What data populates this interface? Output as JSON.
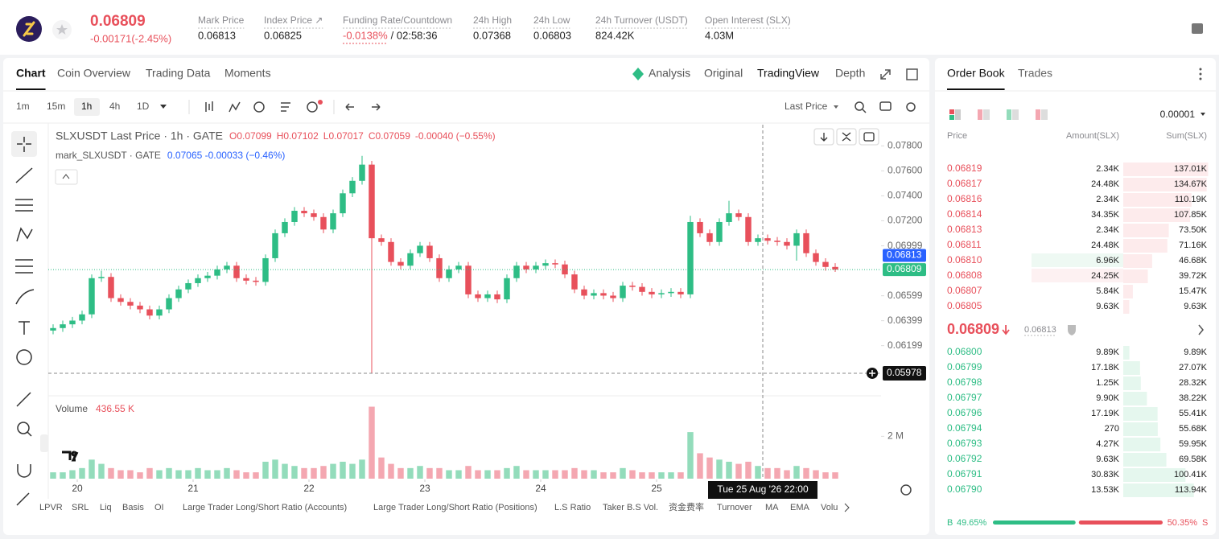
{
  "header": {
    "symbol_price": "0.06809",
    "change": "-0.00171(-2.45%)",
    "stats": [
      {
        "label": "Mark Price",
        "value": "0.06813"
      },
      {
        "label": "Index Price ↗",
        "value": "0.06825"
      },
      {
        "label": "Funding Rate/Countdown",
        "value": "-0.0138%",
        "extra": "/ 02:58:36"
      },
      {
        "label": "24h High",
        "value": "0.07368"
      },
      {
        "label": "24h Low",
        "value": "0.06803"
      },
      {
        "label": "24h Turnover (USDT)",
        "value": "824.42K"
      },
      {
        "label": "Open Interest (SLX)",
        "value": "4.03M"
      }
    ]
  },
  "chart_panel": {
    "tabs": [
      "Chart",
      "Coin Overview",
      "Trading Data",
      "Moments"
    ],
    "views": [
      "Analysis",
      "Original",
      "TradingView",
      "Depth"
    ],
    "intervals": [
      "1m",
      "15m",
      "1h",
      "4h",
      "1D"
    ],
    "price_source": "Last Price",
    "indicators": [
      "LPVR",
      "SRL",
      "Liq",
      "Basis",
      "OI",
      "Large Trader Long/Short Ratio (Accounts)",
      "Large Trader Long/Short Ratio (Positions)",
      "L.S Ratio",
      "Taker B.S Vol.",
      "资金费率",
      "Turnover",
      "MA",
      "EMA",
      "Volu"
    ]
  },
  "chart_data": {
    "type": "candlestick",
    "title": "SLXUSDT Last Price · 1h · GATE",
    "ohlc_legend": [
      "O0.07099",
      "H0.07102",
      "L0.07017",
      "C0.07059",
      "-0.00040 (−0.55%)"
    ],
    "mark_legend": {
      "name": "mark_SLXUSDT · GATE",
      "values": "0.07065 -0.00033 (−0.46%)"
    },
    "up_color": "#2ebd85",
    "down_color": "#e8505b",
    "open": [
      0.0632,
      0.0634,
      0.0637,
      0.064,
      0.0645,
      0.0674,
      0.0675,
      0.0658,
      0.0655,
      0.0652,
      0.0649,
      0.0644,
      0.0649,
      0.0658,
      0.0665,
      0.067,
      0.0674,
      0.0676,
      0.0681,
      0.0684,
      0.0674,
      0.0672,
      0.0671,
      0.069,
      0.071,
      0.0719,
      0.0728,
      0.0726,
      0.0723,
      0.0713,
      0.0726,
      0.0742,
      0.0752,
      0.0765,
      0.0706,
      0.0703,
      0.0687,
      0.0684,
      0.0694,
      0.07,
      0.069,
      0.0674,
      0.0681,
      0.0684,
      0.0661,
      0.0658,
      0.0661,
      0.0657,
      0.0674,
      0.0684,
      0.0681,
      0.0684,
      0.0686,
      0.0685,
      0.0677,
      0.0665,
      0.066,
      0.0662,
      0.066,
      0.0658,
      0.0668,
      0.0667,
      0.0663,
      0.0661,
      0.0662,
      0.0663,
      0.0661,
      0.0719,
      0.071,
      0.0703,
      0.0719,
      0.0726,
      0.0723,
      0.0703,
      0.0706,
      0.0704,
      0.0703,
      0.07,
      0.071,
      0.0694,
      0.0687,
      0.0683
    ],
    "high": [
      0.0637,
      0.064,
      0.0643,
      0.0648,
      0.0677,
      0.068,
      0.0678,
      0.0661,
      0.0658,
      0.0655,
      0.0652,
      0.0652,
      0.0661,
      0.0668,
      0.0673,
      0.0677,
      0.0679,
      0.0684,
      0.0687,
      0.0687,
      0.0677,
      0.0675,
      0.0693,
      0.0713,
      0.0722,
      0.0731,
      0.0731,
      0.0729,
      0.0726,
      0.0729,
      0.0745,
      0.0755,
      0.0772,
      0.0768,
      0.0709,
      0.0706,
      0.069,
      0.0697,
      0.0703,
      0.0703,
      0.0693,
      0.0684,
      0.0687,
      0.0687,
      0.0664,
      0.0664,
      0.0664,
      0.0677,
      0.0687,
      0.0687,
      0.0687,
      0.0689,
      0.0689,
      0.0688,
      0.068,
      0.0668,
      0.0665,
      0.0665,
      0.0663,
      0.0671,
      0.0671,
      0.067,
      0.0666,
      0.0665,
      0.0666,
      0.0666,
      0.0724,
      0.0722,
      0.0713,
      0.0722,
      0.0736,
      0.0729,
      0.0726,
      0.0709,
      0.0709,
      0.0707,
      0.0706,
      0.0713,
      0.0713,
      0.0697,
      0.069,
      0.0686
    ],
    "low": [
      0.0629,
      0.0631,
      0.0634,
      0.0637,
      0.0642,
      0.0671,
      0.0655,
      0.0652,
      0.0649,
      0.0646,
      0.0641,
      0.0641,
      0.0646,
      0.0655,
      0.0662,
      0.0667,
      0.0671,
      0.0673,
      0.0678,
      0.0671,
      0.0669,
      0.0668,
      0.0668,
      0.0687,
      0.0707,
      0.0716,
      0.0723,
      0.072,
      0.071,
      0.071,
      0.0723,
      0.0739,
      0.0749,
      0.05978,
      0.07,
      0.0684,
      0.0681,
      0.0681,
      0.0691,
      0.0687,
      0.0671,
      0.0671,
      0.0678,
      0.0658,
      0.0655,
      0.0655,
      0.0654,
      0.0654,
      0.0671,
      0.0678,
      0.0678,
      0.0681,
      0.0682,
      0.0674,
      0.0662,
      0.0657,
      0.0657,
      0.0657,
      0.0655,
      0.0655,
      0.0664,
      0.066,
      0.0658,
      0.0658,
      0.0659,
      0.0658,
      0.0658,
      0.0707,
      0.07,
      0.07,
      0.0716,
      0.072,
      0.07,
      0.07,
      0.0701,
      0.07,
      0.0697,
      0.0688,
      0.0691,
      0.0684,
      0.068,
      0.0679
    ],
    "close": [
      0.0634,
      0.0637,
      0.064,
      0.0645,
      0.0674,
      0.0675,
      0.0658,
      0.0655,
      0.0652,
      0.0649,
      0.0644,
      0.0649,
      0.0658,
      0.0665,
      0.067,
      0.0674,
      0.0676,
      0.0681,
      0.0684,
      0.0674,
      0.0672,
      0.0671,
      0.069,
      0.071,
      0.0719,
      0.0728,
      0.0726,
      0.0723,
      0.0713,
      0.0726,
      0.0742,
      0.0752,
      0.0765,
      0.0706,
      0.0703,
      0.0687,
      0.0684,
      0.0694,
      0.07,
      0.069,
      0.0674,
      0.0681,
      0.0684,
      0.0661,
      0.0658,
      0.0661,
      0.0657,
      0.0674,
      0.0684,
      0.0681,
      0.0684,
      0.0686,
      0.0685,
      0.0677,
      0.0665,
      0.066,
      0.0662,
      0.066,
      0.0658,
      0.0668,
      0.0667,
      0.0663,
      0.0661,
      0.0662,
      0.0663,
      0.0661,
      0.0719,
      0.071,
      0.0703,
      0.0719,
      0.0726,
      0.0723,
      0.0703,
      0.0706,
      0.0704,
      0.0703,
      0.07,
      0.071,
      0.0694,
      0.0687,
      0.0683,
      0.06809
    ],
    "xlim": [
      0,
      82
    ],
    "xticks": [
      {
        "value": 3,
        "label": "20"
      },
      {
        "value": 15,
        "label": "21"
      },
      {
        "value": 27,
        "label": "22"
      },
      {
        "value": 39,
        "label": "23"
      },
      {
        "value": 51,
        "label": "24"
      },
      {
        "value": 63,
        "label": "25"
      }
    ],
    "ylim": [
      0.0581,
      0.0797
    ],
    "yticks": [
      {
        "value": 0.078,
        "label": "0.07800"
      },
      {
        "value": 0.076,
        "label": "0.07600"
      },
      {
        "value": 0.074,
        "label": "0.07400"
      },
      {
        "value": 0.072,
        "label": "0.07200"
      },
      0.06999,
      0.06599,
      0.06399,
      0.06199
    ],
    "last_price": {
      "value": 0.06809,
      "label": "0.06809"
    },
    "mark_price": {
      "value": 0.06813,
      "label": "0.06813"
    },
    "crosshair": {
      "x": 74,
      "time_label": "Tue 25 Aug '26  22:00",
      "price": {
        "value": 0.05978,
        "label": "0.05978"
      }
    },
    "volume": {
      "title": "Volume",
      "current": "436.55 K",
      "values": [
        0.3,
        0.3,
        0.4,
        0.5,
        0.9,
        0.7,
        0.5,
        0.4,
        0.4,
        0.3,
        0.5,
        0.4,
        0.5,
        0.4,
        0.4,
        0.5,
        0.4,
        0.4,
        0.5,
        0.4,
        0.3,
        0.3,
        0.8,
        0.9,
        0.7,
        0.6,
        0.5,
        0.5,
        0.6,
        0.7,
        0.8,
        0.7,
        0.9,
        3.4,
        1.0,
        0.7,
        0.5,
        0.5,
        0.6,
        0.5,
        0.5,
        0.4,
        0.4,
        0.6,
        0.4,
        0.4,
        0.4,
        0.5,
        0.6,
        0.4,
        0.4,
        0.4,
        0.4,
        0.4,
        0.5,
        0.4,
        0.4,
        0.3,
        0.3,
        0.5,
        0.4,
        0.3,
        0.3,
        0.3,
        0.3,
        0.3,
        2.2,
        1.2,
        1.0,
        0.9,
        0.8,
        0.7,
        0.8,
        0.6,
        0.5,
        0.5,
        0.4,
        0.6,
        0.5,
        0.4,
        0.3,
        0.3
      ],
      "up_color": "#93dcbb",
      "down_color": "#f4a7b1",
      "ylim": [
        0,
        3.8
      ],
      "yticks": [
        {
          "value": 2,
          "label": "2 M"
        }
      ]
    }
  },
  "order_book": {
    "tabs": [
      "Order Book",
      "Trades"
    ],
    "precision": "0.00001",
    "columns": [
      "Price",
      "Amount(SLX)",
      "Sum(SLX)"
    ],
    "asks": [
      {
        "price": "0.06819",
        "amount": "2.34K",
        "sum": {
          "value": 137.01,
          "label": "137.01K"
        }
      },
      {
        "price": "0.06817",
        "amount": "24.48K",
        "sum": {
          "value": 134.67,
          "label": "134.67K"
        }
      },
      {
        "price": "0.06816",
        "amount": "2.34K",
        "sum": {
          "value": 110.19,
          "label": "110.19K"
        }
      },
      {
        "price": "0.06814",
        "amount": "34.35K",
        "sum": {
          "value": 107.85,
          "label": "107.85K"
        }
      },
      {
        "price": "0.06813",
        "amount": "2.34K",
        "sum": {
          "value": 73.5,
          "label": "73.50K"
        }
      },
      {
        "price": "0.06811",
        "amount": "24.48K",
        "sum": {
          "value": 71.16,
          "label": "71.16K"
        }
      },
      {
        "price": "0.06810",
        "amount": "6.96K",
        "sum": {
          "value": 46.68,
          "label": "46.68K"
        }
      },
      {
        "price": "0.06808",
        "amount": "24.25K",
        "sum": {
          "value": 39.72,
          "label": "39.72K"
        }
      },
      {
        "price": "0.06807",
        "amount": "5.84K",
        "sum": {
          "value": 15.47,
          "label": "15.47K"
        }
      },
      {
        "price": "0.06805",
        "amount": "9.63K",
        "sum": {
          "value": 9.63,
          "label": "9.63K"
        }
      }
    ],
    "mid_price": "0.06809",
    "mid_mark": "0.06813",
    "bids": [
      {
        "price": "0.06800",
        "amount": "9.89K",
        "sum": {
          "value": 9.89,
          "label": "9.89K"
        }
      },
      {
        "price": "0.06799",
        "amount": "17.18K",
        "sum": {
          "value": 27.07,
          "label": "27.07K"
        }
      },
      {
        "price": "0.06798",
        "amount": "1.25K",
        "sum": {
          "value": 28.32,
          "label": "28.32K"
        }
      },
      {
        "price": "0.06797",
        "amount": "9.90K",
        "sum": {
          "value": 38.22,
          "label": "38.22K"
        }
      },
      {
        "price": "0.06796",
        "amount": "17.19K",
        "sum": {
          "value": 55.41,
          "label": "55.41K"
        }
      },
      {
        "price": "0.06794",
        "amount": "270",
        "sum": {
          "value": 55.68,
          "label": "55.68K"
        }
      },
      {
        "price": "0.06793",
        "amount": "4.27K",
        "sum": {
          "value": 59.95,
          "label": "59.95K"
        }
      },
      {
        "price": "0.06792",
        "amount": "9.63K",
        "sum": {
          "value": 69.58,
          "label": "69.58K"
        }
      },
      {
        "price": "0.06791",
        "amount": "30.83K",
        "sum": {
          "value": 100.41,
          "label": "100.41K"
        }
      },
      {
        "price": "0.06790",
        "amount": "13.53K",
        "sum": {
          "value": 113.94,
          "label": "113.94K"
        }
      }
    ],
    "ratio": {
      "buy_tag": "B",
      "buy": {
        "value": 49.65,
        "label": "49.65%"
      },
      "sell": {
        "value": 50.35,
        "label": "50.35%"
      },
      "sell_tag": "S"
    }
  }
}
